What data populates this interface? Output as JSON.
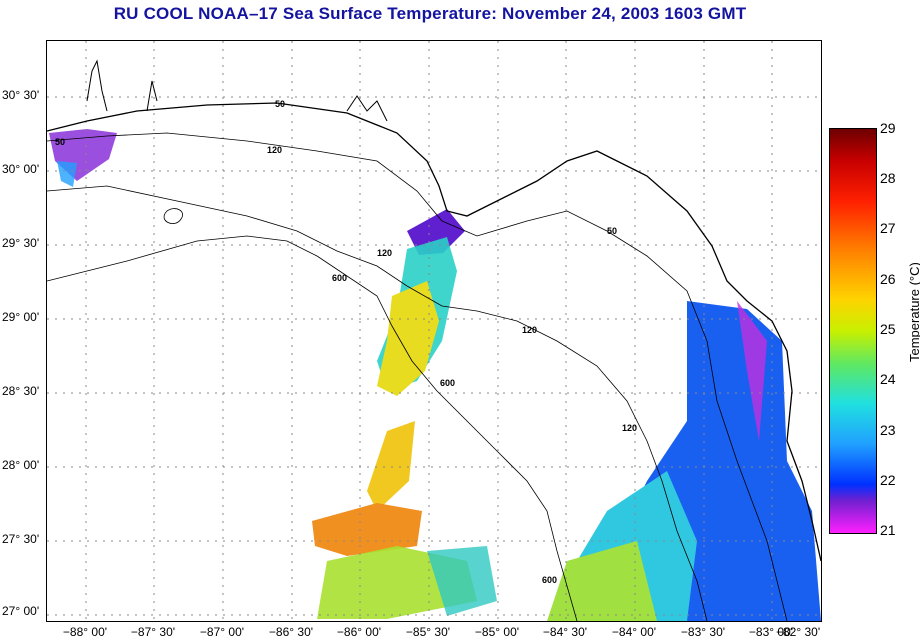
{
  "title": "RU COOL  NOAA–17  Sea Surface Temperature:  November 24, 2003 1603 GMT",
  "latitude_labels": [
    "30° 30'",
    "30° 00'",
    "29° 30'",
    "29° 00'",
    "28° 30'",
    "28° 00'",
    "27° 30'",
    "27° 00'"
  ],
  "longitude_labels": [
    "−88° 00'",
    "−87° 30'",
    "−87° 00'",
    "−86° 30'",
    "−86° 00'",
    "−85° 30'",
    "−85° 00'",
    "−84° 30'",
    "−84° 00'",
    "−83° 30'",
    "−83° 00'",
    "−82° 30'"
  ],
  "contour_labels": [
    "50",
    "120",
    "600"
  ],
  "colorbar": {
    "title": "Temperature (°C)",
    "ticks": [
      "29",
      "28",
      "27",
      "26",
      "25",
      "24",
      "23",
      "22",
      "21"
    ],
    "colors": {
      "hot": "#6e0000",
      "warm": "#ff8000",
      "mid": "#ffd200",
      "cool": "#20e0e0",
      "cold": "#0030ff",
      "coldest": "#ff20ff"
    }
  }
}
